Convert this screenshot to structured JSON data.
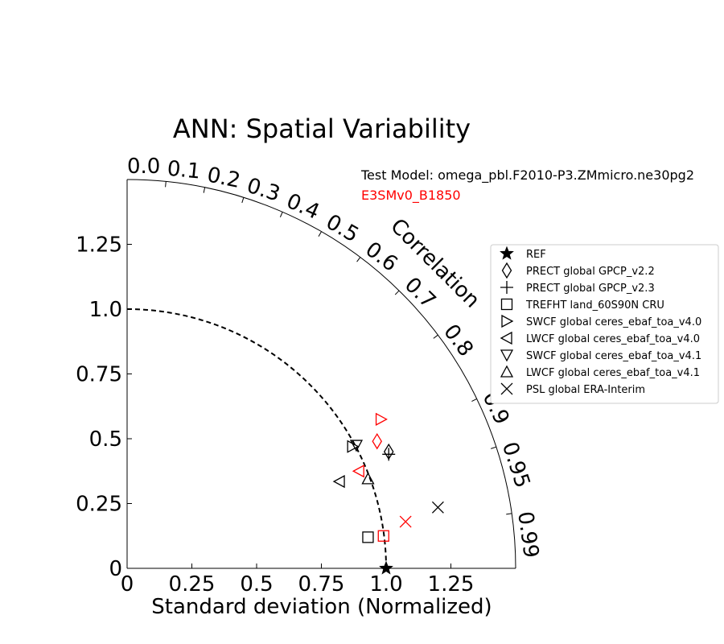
{
  "chart_data": {
    "type": "scatter",
    "subtype": "taylor-diagram",
    "title": "ANN: Spatial Variability",
    "xlabel": "Standard deviation (Normalized)",
    "corr_label": "Correlation",
    "test_model_label": "Test Model: omega_pbl.F2010-P3.ZMmicro.ne30pg2",
    "ref_model_label": "E3SMv0_B1850",
    "model_colors": {
      "test": "#000000",
      "ref": "#ff0000"
    },
    "x_ticks": [
      "0",
      "0.25",
      "0.5",
      "0.75",
      "1.0",
      "1.25"
    ],
    "y_ticks": [
      "0",
      "0.25",
      "0.5",
      "0.75",
      "1.0",
      "1.25"
    ],
    "corr_ticks": [
      "0.0",
      "0.1",
      "0.2",
      "0.3",
      "0.4",
      "0.5",
      "0.6",
      "0.7",
      "0.8",
      "0.9",
      "0.95",
      "0.99"
    ],
    "xlim": [
      0,
      1.5
    ],
    "ylim": [
      0,
      1.5
    ],
    "reference_arc_std": 1.0,
    "legend": [
      {
        "label": "REF",
        "marker": "star"
      },
      {
        "label": "PRECT global GPCP_v2.2",
        "marker": "thin-diamond"
      },
      {
        "label": "PRECT global GPCP_v2.3",
        "marker": "plus"
      },
      {
        "label": "TREFHT land_60S90N CRU",
        "marker": "square"
      },
      {
        "label": "SWCF global ceres_ebaf_toa_v4.0",
        "marker": "triangle-right"
      },
      {
        "label": "LWCF global ceres_ebaf_toa_v4.0",
        "marker": "triangle-left"
      },
      {
        "label": "SWCF global ceres_ebaf_toa_v4.1",
        "marker": "triangle-down"
      },
      {
        "label": "LWCF global ceres_ebaf_toa_v4.1",
        "marker": "triangle-up"
      },
      {
        "label": "PSL global ERA-Interim",
        "marker": "x"
      }
    ],
    "series": [
      {
        "model": "test",
        "marker": "star",
        "x": 1.0,
        "y": 0.0
      },
      {
        "model": "test",
        "marker": "thin-diamond",
        "x": 1.01,
        "y": 0.45
      },
      {
        "model": "test",
        "marker": "plus",
        "x": 1.01,
        "y": 0.44
      },
      {
        "model": "test",
        "marker": "square",
        "x": 0.93,
        "y": 0.12
      },
      {
        "model": "test",
        "marker": "triangle-right",
        "x": 0.87,
        "y": 0.47
      },
      {
        "model": "test",
        "marker": "triangle-left",
        "x": 0.82,
        "y": 0.335
      },
      {
        "model": "test",
        "marker": "triangle-down",
        "x": 0.885,
        "y": 0.475
      },
      {
        "model": "test",
        "marker": "triangle-up",
        "x": 0.93,
        "y": 0.345
      },
      {
        "model": "test",
        "marker": "x",
        "x": 1.2,
        "y": 0.235
      },
      {
        "model": "ref",
        "marker": "thin-diamond",
        "x": 0.965,
        "y": 0.49
      },
      {
        "model": "ref",
        "marker": "triangle-right",
        "x": 0.98,
        "y": 0.575
      },
      {
        "model": "ref",
        "marker": "square",
        "x": 0.99,
        "y": 0.125
      },
      {
        "model": "ref",
        "marker": "triangle-left",
        "x": 0.895,
        "y": 0.375
      },
      {
        "model": "ref",
        "marker": "x",
        "x": 1.075,
        "y": 0.18
      }
    ]
  }
}
